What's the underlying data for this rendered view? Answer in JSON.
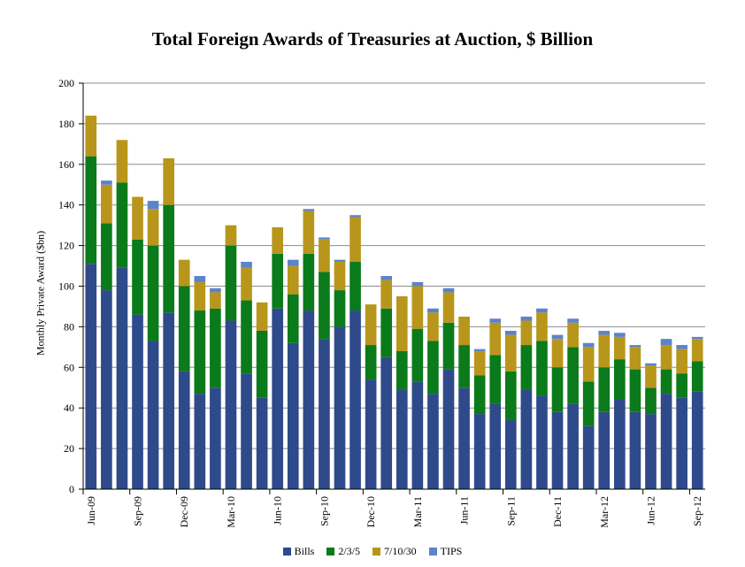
{
  "chart_data": {
    "type": "bar",
    "stacked": true,
    "title": "Total Foreign Awards of Treasuries at Auction, $ Billion",
    "xlabel": "",
    "ylabel": "Monthly Private Award ($bn)",
    "ylim": [
      0,
      200
    ],
    "yticks": [
      0,
      20,
      40,
      60,
      80,
      100,
      120,
      140,
      160,
      180,
      200
    ],
    "grid": true,
    "legend_position": "bottom",
    "categories": [
      "Jun-09",
      "Jul-09",
      "Aug-09",
      "Sep-09",
      "Oct-09",
      "Nov-09",
      "Dec-09",
      "Jan-10",
      "Feb-10",
      "Mar-10",
      "Apr-10",
      "May-10",
      "Jun-10",
      "Jul-10",
      "Aug-10",
      "Sep-10",
      "Oct-10",
      "Nov-10",
      "Dec-10",
      "Jan-11",
      "Feb-11",
      "Mar-11",
      "Apr-11",
      "May-11",
      "Jun-11",
      "Jul-11",
      "Aug-11",
      "Sep-11",
      "Oct-11",
      "Nov-11",
      "Dec-11",
      "Jan-12",
      "Feb-12",
      "Mar-12",
      "Apr-12",
      "May-12",
      "Jun-12",
      "Jul-12",
      "Aug-12",
      "Sep-12"
    ],
    "tick_labels": {
      "0": "Jun-09",
      "3": "Sep-09",
      "6": "Dec-09",
      "9": "Mar-10",
      "12": "Jun-10",
      "15": "Sep-10",
      "18": "Dec-10",
      "21": "Mar-11",
      "24": "Jun-11",
      "27": "Sep-11",
      "30": "Dec-11",
      "33": "Mar-12",
      "36": "Jun-12",
      "39": "Sep-12"
    },
    "series": [
      {
        "name": "Bills",
        "color": "#2e4a8a",
        "values": [
          111,
          98,
          109,
          86,
          73,
          87,
          58,
          47,
          50,
          83,
          57,
          45,
          89,
          72,
          88,
          74,
          80,
          88,
          54,
          65,
          49,
          53,
          47,
          59,
          50,
          37,
          42,
          34,
          49,
          46,
          38,
          42,
          31,
          38,
          44,
          38,
          37,
          47,
          45,
          48
        ]
      },
      {
        "name": "2/3/5",
        "color": "#0b7a1a",
        "values": [
          53,
          33,
          42,
          37,
          47,
          53,
          42,
          41,
          39,
          37,
          36,
          33,
          27,
          24,
          28,
          33,
          18,
          24,
          17,
          24,
          19,
          26,
          26,
          23,
          21,
          19,
          24,
          24,
          22,
          27,
          22,
          28,
          22,
          22,
          20,
          21,
          13,
          12,
          12,
          15
        ]
      },
      {
        "name": "7/10/30",
        "color": "#b8961b",
        "values": [
          20,
          19,
          21,
          21,
          18,
          23,
          13,
          14,
          8,
          10,
          16,
          14,
          13,
          14,
          21,
          16,
          14,
          22,
          20,
          14,
          27,
          21,
          14,
          15,
          14,
          12,
          16,
          18,
          12,
          14,
          14,
          12,
          17,
          16,
          11,
          11,
          11,
          12,
          12,
          11
        ]
      },
      {
        "name": "TIPS",
        "color": "#5b84c9",
        "values": [
          0,
          2,
          0,
          0,
          4,
          0,
          0,
          3,
          2,
          0,
          3,
          0,
          0,
          3,
          1,
          1,
          1,
          1,
          0,
          2,
          0,
          2,
          2,
          2,
          0,
          1,
          2,
          2,
          2,
          2,
          2,
          2,
          2,
          2,
          2,
          1,
          1,
          3,
          2,
          1
        ]
      }
    ]
  }
}
